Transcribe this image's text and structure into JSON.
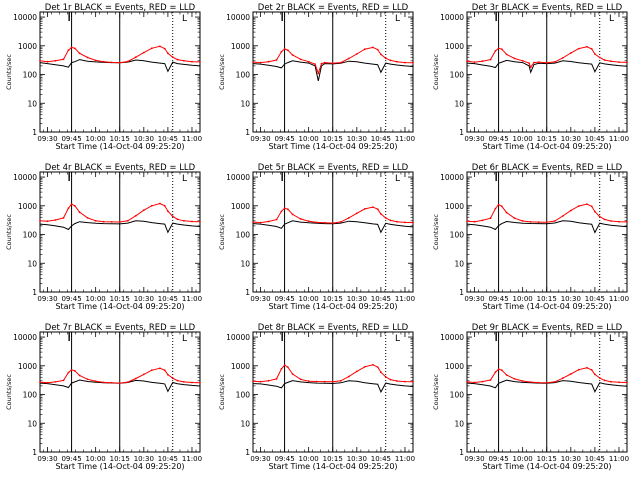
{
  "figure": {
    "common": {
      "ylabel": "Counts/sec",
      "xlabel": "Start Time (14-Oct-04 09:25:20)",
      "y_ticks": [
        "1",
        "10",
        "100",
        "1000",
        "10000"
      ],
      "x_ticks": [
        "09:30",
        "09:45",
        "10:00",
        "10:15",
        "10:30",
        "10:45",
        "11:00"
      ],
      "x_tick_values": [
        30,
        45,
        60,
        75,
        90,
        105,
        120
      ],
      "xlim_minutes_from_0900": [
        25.33,
        125
      ],
      "ylim": [
        1,
        15000
      ],
      "y_scale": "log",
      "colors": {
        "events": "#000000",
        "lld": "#ff0000"
      },
      "vertical_lines": [
        {
          "x": 45,
          "style": "solid"
        },
        {
          "x": 75,
          "style": "solid"
        },
        {
          "x": 108,
          "style": "dotted"
        }
      ],
      "corner_mark": "L"
    }
  },
  "chart_data": [
    {
      "type": "line",
      "title": "Det 1r BLACK = Events, RED = LLD",
      "x": [
        25.3,
        30,
        35,
        40,
        43,
        45,
        47,
        50,
        55,
        60,
        65,
        70,
        75,
        80,
        85,
        90,
        95,
        100,
        103,
        105,
        108,
        111,
        115,
        120,
        125
      ],
      "series": [
        {
          "color": "#000000",
          "values": [
            260,
            240,
            220,
            200,
            180,
            260,
            280,
            330,
            290,
            275,
            265,
            260,
            255,
            270,
            320,
            300,
            270,
            250,
            240,
            130,
            270,
            240,
            225,
            210,
            200
          ]
        },
        {
          "color": "#ff0000",
          "values": [
            300,
            280,
            300,
            340,
            700,
            880,
            820,
            550,
            390,
            310,
            280,
            265,
            255,
            285,
            400,
            580,
            820,
            960,
            800,
            550,
            400,
            330,
            300,
            280,
            275
          ]
        }
      ]
    },
    {
      "type": "line",
      "title": "Det 2r BLACK = Events, RED = LLD",
      "x": [
        25.3,
        30,
        35,
        40,
        43,
        45,
        47,
        50,
        55,
        60,
        64,
        66,
        68,
        70,
        75,
        80,
        85,
        90,
        95,
        100,
        103,
        105,
        108,
        111,
        115,
        120,
        125
      ],
      "series": [
        {
          "color": "#000000",
          "values": [
            240,
            230,
            210,
            190,
            170,
            230,
            260,
            300,
            270,
            250,
            200,
            60,
            200,
            240,
            235,
            245,
            290,
            280,
            250,
            230,
            220,
            120,
            250,
            230,
            215,
            200,
            190
          ]
        },
        {
          "color": "#ff0000",
          "values": [
            270,
            260,
            280,
            320,
            620,
            780,
            700,
            480,
            340,
            280,
            230,
            110,
            240,
            260,
            245,
            260,
            360,
            520,
            760,
            880,
            740,
            500,
            370,
            310,
            280,
            260,
            255
          ]
        }
      ]
    },
    {
      "type": "line",
      "title": "Det 3r BLACK = Events, RED = LLD",
      "x": [
        25.3,
        30,
        35,
        40,
        43,
        45,
        47,
        50,
        55,
        60,
        64,
        65,
        67,
        70,
        75,
        80,
        85,
        90,
        95,
        100,
        103,
        105,
        108,
        111,
        115,
        120,
        125
      ],
      "series": [
        {
          "color": "#000000",
          "values": [
            250,
            240,
            215,
            195,
            175,
            245,
            270,
            310,
            280,
            260,
            200,
            120,
            220,
            245,
            240,
            250,
            300,
            285,
            255,
            240,
            230,
            125,
            255,
            235,
            220,
            205,
            195
          ]
        },
        {
          "color": "#ff0000",
          "values": [
            290,
            270,
            290,
            330,
            660,
            820,
            760,
            500,
            360,
            300,
            250,
            180,
            260,
            270,
            255,
            275,
            380,
            560,
            800,
            920,
            780,
            520,
            390,
            320,
            290,
            270,
            265
          ]
        }
      ]
    },
    {
      "type": "line",
      "title": "Det 4r BLACK = Events, RED = LLD",
      "x": [
        25.3,
        30,
        35,
        40,
        43,
        45,
        47,
        50,
        55,
        60,
        65,
        70,
        75,
        80,
        85,
        90,
        95,
        100,
        103,
        105,
        108,
        111,
        115,
        120,
        125
      ],
      "series": [
        {
          "color": "#000000",
          "values": [
            230,
            220,
            200,
            180,
            150,
            200,
            240,
            280,
            260,
            245,
            240,
            238,
            235,
            250,
            300,
            290,
            260,
            240,
            230,
            120,
            250,
            230,
            215,
            200,
            190
          ]
        },
        {
          "color": "#ff0000",
          "values": [
            300,
            290,
            320,
            380,
            820,
            1150,
            1000,
            600,
            380,
            300,
            280,
            275,
            272,
            300,
            450,
            700,
            1000,
            1200,
            1000,
            650,
            430,
            340,
            300,
            285,
            280
          ]
        }
      ]
    },
    {
      "type": "line",
      "title": "Det 5r BLACK = Events, RED = LLD",
      "x": [
        25.3,
        30,
        35,
        40,
        43,
        45,
        47,
        50,
        55,
        60,
        65,
        70,
        75,
        80,
        85,
        90,
        95,
        100,
        103,
        105,
        108,
        111,
        115,
        120,
        125
      ],
      "series": [
        {
          "color": "#000000",
          "values": [
            240,
            230,
            210,
            190,
            165,
            230,
            255,
            300,
            270,
            255,
            245,
            240,
            238,
            250,
            290,
            280,
            255,
            235,
            225,
            120,
            245,
            225,
            210,
            195,
            185
          ]
        },
        {
          "color": "#ff0000",
          "values": [
            270,
            260,
            285,
            330,
            640,
            820,
            760,
            500,
            350,
            290,
            265,
            255,
            250,
            275,
            380,
            550,
            780,
            900,
            760,
            520,
            380,
            310,
            280,
            265,
            260
          ]
        }
      ]
    },
    {
      "type": "line",
      "title": "Det 6r BLACK = Events, RED = LLD",
      "x": [
        25.3,
        30,
        35,
        40,
        43,
        45,
        47,
        50,
        55,
        60,
        65,
        70,
        75,
        80,
        85,
        90,
        95,
        100,
        103,
        105,
        108,
        111,
        115,
        120,
        125
      ],
      "series": [
        {
          "color": "#000000",
          "values": [
            230,
            220,
            200,
            180,
            150,
            205,
            240,
            285,
            262,
            248,
            242,
            240,
            238,
            252,
            300,
            288,
            258,
            238,
            228,
            118,
            248,
            228,
            212,
            198,
            188
          ]
        },
        {
          "color": "#ff0000",
          "values": [
            290,
            280,
            310,
            370,
            800,
            1100,
            960,
            580,
            370,
            295,
            275,
            270,
            268,
            295,
            440,
            680,
            980,
            1150,
            960,
            630,
            420,
            335,
            295,
            280,
            275
          ]
        }
      ]
    },
    {
      "type": "line",
      "title": "Det 7r BLACK = Events, RED = LLD",
      "x": [
        25.3,
        30,
        35,
        40,
        43,
        45,
        47,
        50,
        55,
        60,
        65,
        70,
        75,
        80,
        85,
        90,
        95,
        100,
        103,
        105,
        108,
        111,
        115,
        120,
        125
      ],
      "series": [
        {
          "color": "#000000",
          "values": [
            250,
            240,
            220,
            200,
            175,
            250,
            275,
            320,
            285,
            268,
            258,
            252,
            248,
            262,
            310,
            295,
            265,
            245,
            235,
            128,
            262,
            238,
            222,
            208,
            198
          ]
        },
        {
          "color": "#ff0000",
          "values": [
            270,
            255,
            275,
            310,
            580,
            720,
            670,
            460,
            340,
            290,
            265,
            255,
            250,
            270,
            360,
            500,
            700,
            820,
            700,
            490,
            370,
            305,
            275,
            262,
            258
          ]
        }
      ]
    },
    {
      "type": "line",
      "title": "Det 8r BLACK = Events, RED = LLD",
      "x": [
        25.3,
        30,
        35,
        40,
        43,
        45,
        47,
        50,
        55,
        60,
        65,
        70,
        75,
        80,
        85,
        90,
        95,
        100,
        103,
        105,
        108,
        111,
        115,
        120,
        125
      ],
      "series": [
        {
          "color": "#000000",
          "values": [
            240,
            235,
            215,
            195,
            170,
            240,
            265,
            305,
            275,
            260,
            250,
            245,
            242,
            255,
            300,
            288,
            258,
            238,
            228,
            122,
            250,
            230,
            215,
            200,
            190
          ]
        },
        {
          "color": "#ff0000",
          "values": [
            290,
            280,
            300,
            350,
            780,
            1050,
            900,
            520,
            340,
            290,
            285,
            282,
            280,
            300,
            420,
            640,
            920,
            1080,
            900,
            600,
            410,
            330,
            295,
            282,
            278
          ]
        }
      ]
    },
    {
      "type": "line",
      "title": "Det 9r BLACK = Events, RED = LLD",
      "x": [
        25.3,
        30,
        35,
        40,
        43,
        45,
        47,
        50,
        55,
        60,
        65,
        70,
        75,
        80,
        85,
        90,
        95,
        100,
        103,
        105,
        108,
        111,
        115,
        120,
        125
      ],
      "series": [
        {
          "color": "#000000",
          "values": [
            250,
            240,
            218,
            198,
            172,
            245,
            272,
            315,
            282,
            265,
            255,
            250,
            246,
            260,
            305,
            292,
            262,
            242,
            232,
            125,
            258,
            235,
            220,
            205,
            195
          ]
        },
        {
          "color": "#ff0000",
          "values": [
            275,
            262,
            282,
            320,
            600,
            760,
            700,
            480,
            350,
            295,
            270,
            260,
            255,
            275,
            370,
            520,
            730,
            850,
            720,
            500,
            375,
            310,
            280,
            266,
            262
          ]
        }
      ]
    }
  ]
}
